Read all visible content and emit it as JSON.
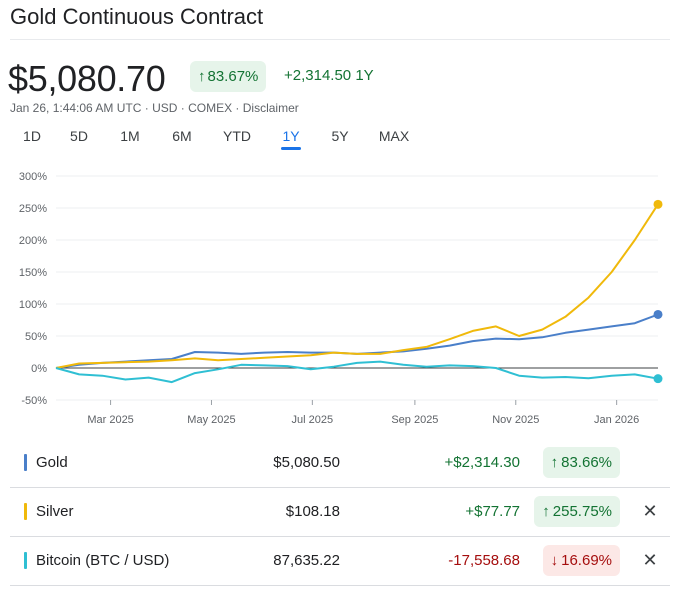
{
  "header": {
    "title": "Gold Continuous Contract",
    "price": "$5,080.70",
    "change_percent": "83.67%",
    "change_abs": "+2,314.50",
    "change_period": "1Y",
    "meta": "Jan 26, 1:44:06 AM UTC · USD · COMEX · Disclaimer"
  },
  "tabs": [
    "1D",
    "5D",
    "1M",
    "6M",
    "YTD",
    "1Y",
    "5Y",
    "MAX"
  ],
  "active_tab": "1Y",
  "colors": {
    "gold": "#4a7fc9",
    "silver": "#f0b90b",
    "bitcoin": "#2fbfd3",
    "positive": "#137333",
    "negative": "#a50e0e"
  },
  "chart_data": {
    "type": "line",
    "ylabel": "",
    "ylim": [
      -50,
      300
    ],
    "y_ticks": [
      "300%",
      "250%",
      "200%",
      "150%",
      "100%",
      "50%",
      "0%",
      "-50%"
    ],
    "x_ticks": [
      "Mar 2025",
      "May 2025",
      "Jul 2025",
      "Sep 2025",
      "Nov 2025",
      "Jan 2026"
    ],
    "x": [
      "2025-01-27",
      "2025-02-10",
      "2025-02-24",
      "2025-03-10",
      "2025-03-24",
      "2025-04-07",
      "2025-04-21",
      "2025-05-05",
      "2025-05-19",
      "2025-06-02",
      "2025-06-16",
      "2025-06-30",
      "2025-07-14",
      "2025-07-28",
      "2025-08-11",
      "2025-08-25",
      "2025-09-08",
      "2025-09-22",
      "2025-10-06",
      "2025-10-20",
      "2025-11-03",
      "2025-11-17",
      "2025-12-01",
      "2025-12-15",
      "2025-12-29",
      "2026-01-12",
      "2026-01-26"
    ],
    "series": [
      {
        "name": "Gold",
        "values": [
          0,
          5,
          8,
          10,
          12,
          14,
          25,
          24,
          22,
          24,
          25,
          24,
          24,
          22,
          24,
          26,
          30,
          35,
          42,
          46,
          45,
          48,
          55,
          60,
          65,
          70,
          83.66
        ]
      },
      {
        "name": "Silver",
        "values": [
          0,
          7,
          8,
          9,
          10,
          12,
          15,
          12,
          14,
          16,
          18,
          20,
          24,
          22,
          22,
          28,
          33,
          45,
          58,
          65,
          50,
          60,
          80,
          110,
          150,
          200,
          255.75
        ]
      },
      {
        "name": "Bitcoin (BTC / USD)",
        "values": [
          0,
          -10,
          -12,
          -18,
          -15,
          -22,
          -8,
          -2,
          5,
          4,
          3,
          -2,
          2,
          8,
          10,
          5,
          2,
          4,
          3,
          0,
          -12,
          -15,
          -14,
          -16,
          -12,
          -10,
          -16.69
        ]
      }
    ]
  },
  "comparison": [
    {
      "name": "Gold",
      "value": "$5,080.50",
      "abs": "+$2,314.30",
      "pct": "83.66%",
      "dir": "up",
      "removable": false
    },
    {
      "name": "Silver",
      "value": "$108.18",
      "abs": "+$77.77",
      "pct": "255.75%",
      "dir": "up",
      "removable": true
    },
    {
      "name": "Bitcoin (BTC / USD)",
      "value": "87,635.22",
      "abs": "-17,558.68",
      "pct": "16.69%",
      "dir": "down",
      "removable": true
    }
  ]
}
